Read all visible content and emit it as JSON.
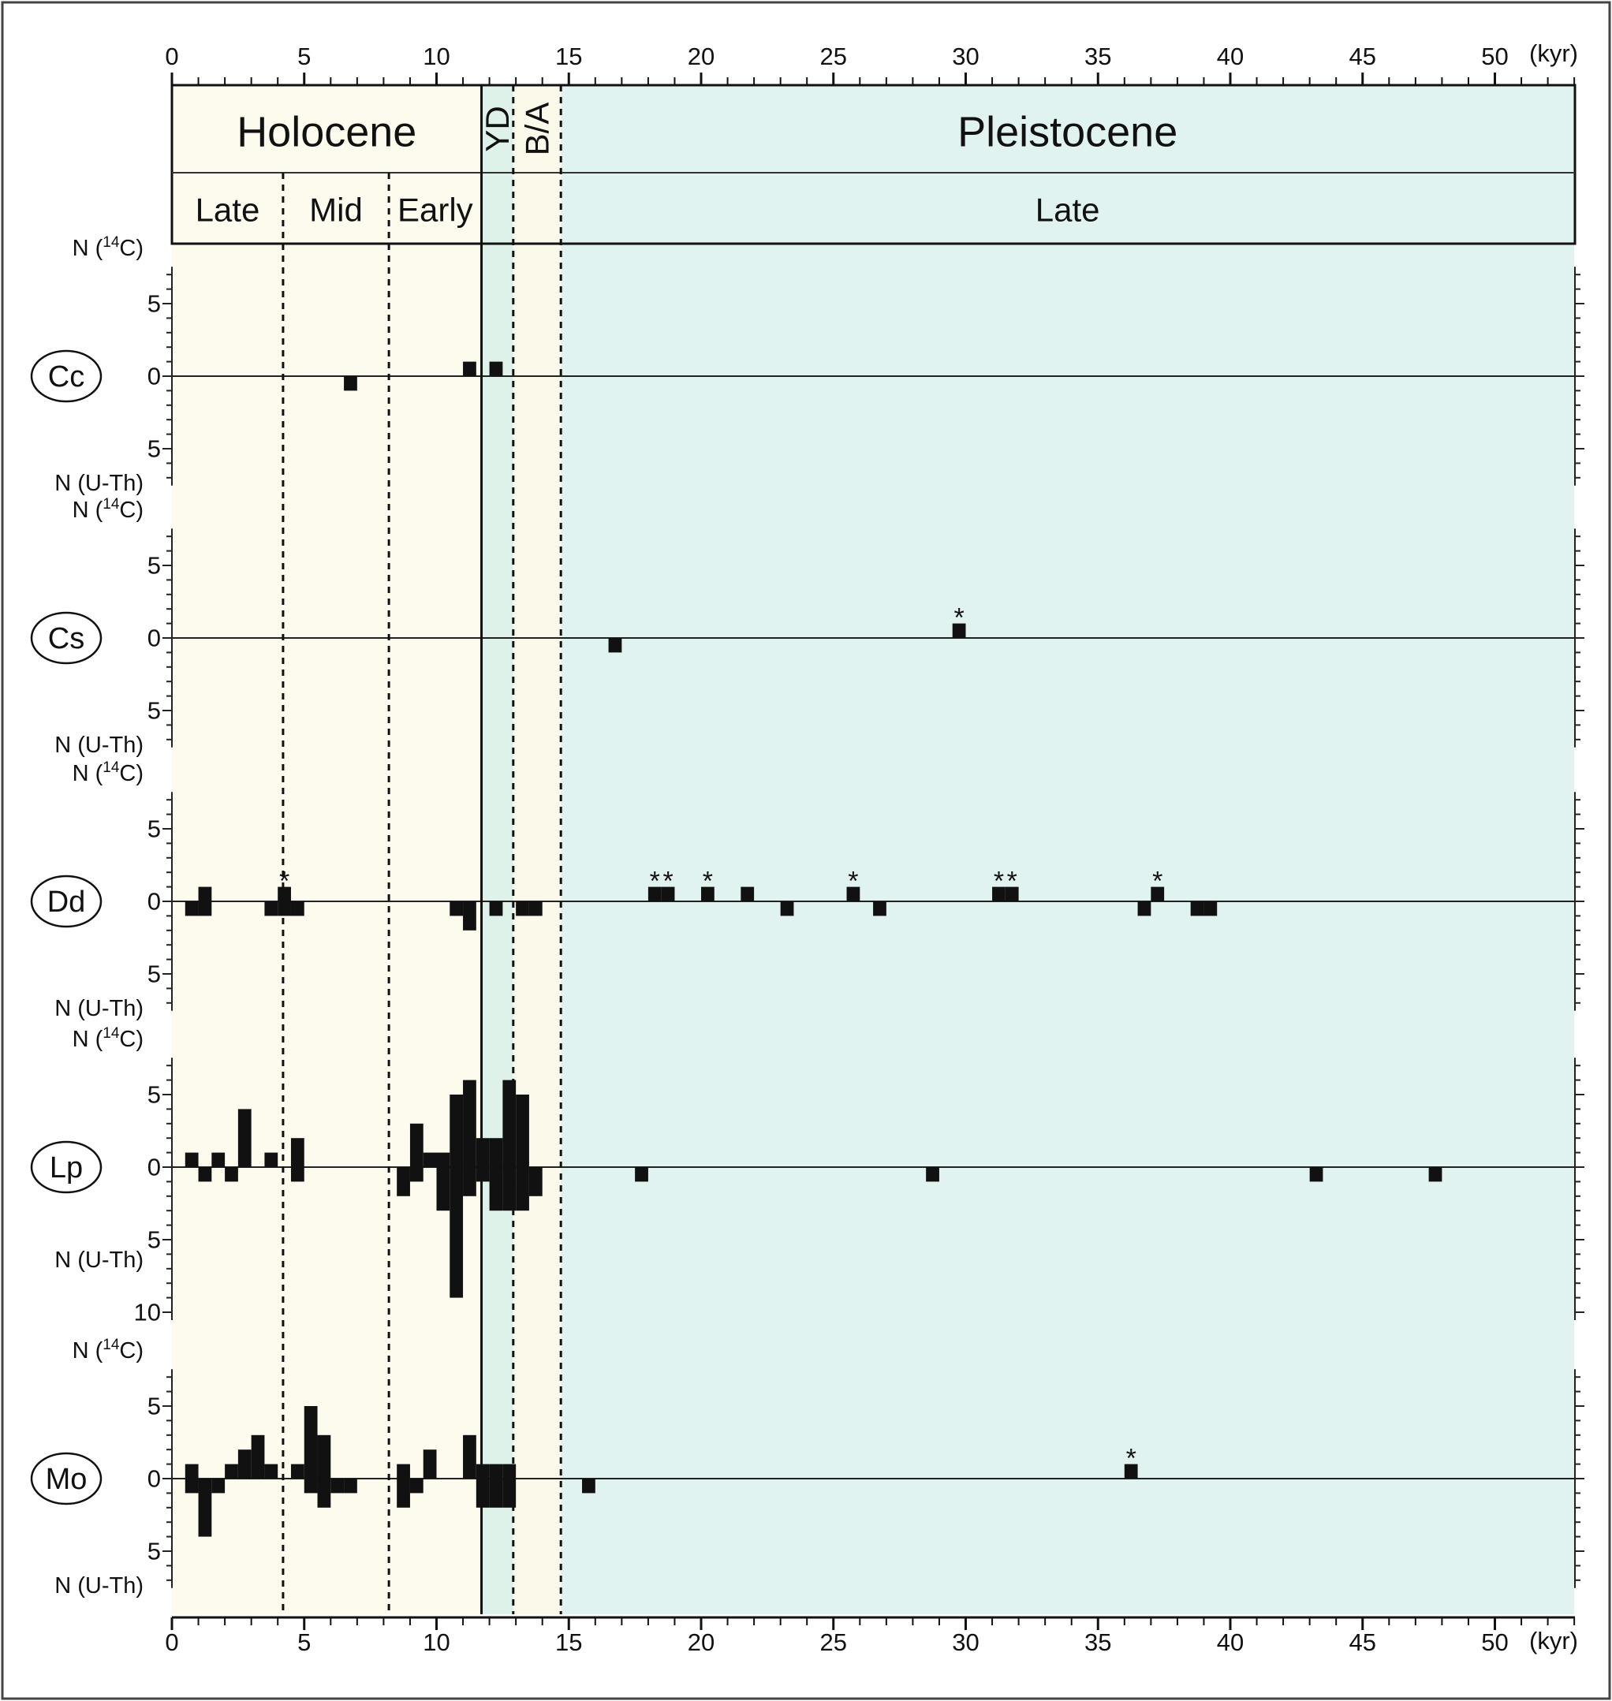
{
  "chart_data": {
    "type": "bar",
    "x_unit": "(kyr)",
    "xlim": [
      0,
      53
    ],
    "x_ticks_major": [
      0,
      5,
      10,
      15,
      20,
      25,
      30,
      35,
      40,
      45,
      50
    ],
    "periods": {
      "top": [
        {
          "label": "Holocene",
          "start": 0,
          "end": 11.7
        },
        {
          "label": "YD",
          "start": 11.7,
          "end": 12.9
        },
        {
          "label": "B/A",
          "start": 12.9,
          "end": 14.7
        },
        {
          "label": "Pleistocene",
          "start": 14.7,
          "end": 53
        }
      ],
      "sub": [
        {
          "label": "Late",
          "start": 0,
          "end": 4.2
        },
        {
          "label": "Mid",
          "start": 4.2,
          "end": 8.2
        },
        {
          "label": "Early",
          "start": 8.2,
          "end": 11.7
        },
        {
          "label": "Late",
          "start": 14.7,
          "end": 53
        }
      ],
      "colors": {
        "holocene": "#fdfbee",
        "yd": "#dff2ea",
        "ba": "#fbf9ea",
        "pleistocene": "#e1f3f1"
      }
    },
    "panel_labels": {
      "top": "N (14C)",
      "bottom": "N (U-Th)"
    },
    "panels": [
      {
        "name": "Cc",
        "ylim_top": 7,
        "ylim_bottom": 7,
        "y_ticks_top": [
          5
        ],
        "y_ticks_bottom": [
          5
        ],
        "c14": [
          {
            "x": 11.25,
            "n": 1
          },
          {
            "x": 12.25,
            "n": 1
          }
        ],
        "uth": [
          {
            "x": 6.75,
            "n": 1
          }
        ],
        "starred": []
      },
      {
        "name": "Cs",
        "ylim_top": 7,
        "ylim_bottom": 7,
        "y_ticks_top": [
          5
        ],
        "y_ticks_bottom": [
          5
        ],
        "c14": [
          {
            "x": 29.75,
            "n": 1
          }
        ],
        "uth": [
          {
            "x": 16.75,
            "n": 1
          }
        ],
        "starred": [
          29.75
        ]
      },
      {
        "name": "Dd",
        "ylim_top": 7,
        "ylim_bottom": 7,
        "y_ticks_top": [
          5
        ],
        "y_ticks_bottom": [
          5
        ],
        "c14": [
          {
            "x": 1.25,
            "n": 1
          },
          {
            "x": 4.25,
            "n": 1
          },
          {
            "x": 18.25,
            "n": 1
          },
          {
            "x": 18.75,
            "n": 1
          },
          {
            "x": 20.25,
            "n": 1
          },
          {
            "x": 21.75,
            "n": 1
          },
          {
            "x": 25.75,
            "n": 1
          },
          {
            "x": 31.25,
            "n": 1
          },
          {
            "x": 31.75,
            "n": 1
          },
          {
            "x": 37.25,
            "n": 1
          }
        ],
        "uth": [
          {
            "x": 0.75,
            "n": 1
          },
          {
            "x": 1.25,
            "n": 1
          },
          {
            "x": 3.75,
            "n": 1
          },
          {
            "x": 4.25,
            "n": 1
          },
          {
            "x": 4.75,
            "n": 1
          },
          {
            "x": 10.75,
            "n": 1
          },
          {
            "x": 11.25,
            "n": 2
          },
          {
            "x": 12.25,
            "n": 1
          },
          {
            "x": 13.25,
            "n": 1
          },
          {
            "x": 13.75,
            "n": 1
          },
          {
            "x": 23.25,
            "n": 1
          },
          {
            "x": 26.75,
            "n": 1
          },
          {
            "x": 36.75,
            "n": 1
          },
          {
            "x": 38.75,
            "n": 1
          },
          {
            "x": 39.25,
            "n": 1
          }
        ],
        "starred": [
          4.25,
          18.25,
          18.75,
          20.25,
          25.75,
          31.25,
          31.75,
          37.25
        ]
      },
      {
        "name": "Lp",
        "ylim_top": 7,
        "ylim_bottom": 10,
        "y_ticks_top": [
          5
        ],
        "y_ticks_bottom": [
          5,
          10
        ],
        "c14": [
          {
            "x": 0.75,
            "n": 1
          },
          {
            "x": 1.75,
            "n": 1
          },
          {
            "x": 2.75,
            "n": 4
          },
          {
            "x": 3.75,
            "n": 1
          },
          {
            "x": 4.75,
            "n": 2
          },
          {
            "x": 9.25,
            "n": 3
          },
          {
            "x": 9.75,
            "n": 1
          },
          {
            "x": 10.25,
            "n": 1
          },
          {
            "x": 10.75,
            "n": 5
          },
          {
            "x": 11.25,
            "n": 6
          },
          {
            "x": 11.75,
            "n": 2
          },
          {
            "x": 12.25,
            "n": 2
          },
          {
            "x": 12.75,
            "n": 6
          },
          {
            "x": 13.25,
            "n": 5
          }
        ],
        "uth": [
          {
            "x": 1.25,
            "n": 1
          },
          {
            "x": 2.25,
            "n": 1
          },
          {
            "x": 4.75,
            "n": 1
          },
          {
            "x": 8.75,
            "n": 2
          },
          {
            "x": 9.25,
            "n": 1
          },
          {
            "x": 10.25,
            "n": 3
          },
          {
            "x": 10.75,
            "n": 9
          },
          {
            "x": 11.25,
            "n": 2
          },
          {
            "x": 11.75,
            "n": 1
          },
          {
            "x": 12.25,
            "n": 3
          },
          {
            "x": 12.75,
            "n": 3
          },
          {
            "x": 13.25,
            "n": 3
          },
          {
            "x": 13.75,
            "n": 2
          },
          {
            "x": 17.75,
            "n": 1
          },
          {
            "x": 28.75,
            "n": 1
          },
          {
            "x": 43.25,
            "n": 1
          },
          {
            "x": 47.75,
            "n": 1
          }
        ],
        "starred": []
      },
      {
        "name": "Mo",
        "ylim_top": 7,
        "ylim_bottom": 7,
        "y_ticks_top": [
          5
        ],
        "y_ticks_bottom": [
          5
        ],
        "c14": [
          {
            "x": 0.75,
            "n": 1
          },
          {
            "x": 2.25,
            "n": 1
          },
          {
            "x": 2.75,
            "n": 2
          },
          {
            "x": 3.25,
            "n": 3
          },
          {
            "x": 3.75,
            "n": 1
          },
          {
            "x": 4.75,
            "n": 1
          },
          {
            "x": 5.25,
            "n": 5
          },
          {
            "x": 5.75,
            "n": 3
          },
          {
            "x": 8.75,
            "n": 1
          },
          {
            "x": 9.75,
            "n": 2
          },
          {
            "x": 11.25,
            "n": 3
          },
          {
            "x": 11.75,
            "n": 1
          },
          {
            "x": 12.25,
            "n": 1
          },
          {
            "x": 12.75,
            "n": 1
          },
          {
            "x": 36.25,
            "n": 1
          }
        ],
        "uth": [
          {
            "x": 0.75,
            "n": 1
          },
          {
            "x": 1.25,
            "n": 4
          },
          {
            "x": 1.75,
            "n": 1
          },
          {
            "x": 5.25,
            "n": 1
          },
          {
            "x": 5.75,
            "n": 2
          },
          {
            "x": 6.25,
            "n": 1
          },
          {
            "x": 6.75,
            "n": 1
          },
          {
            "x": 8.75,
            "n": 2
          },
          {
            "x": 9.25,
            "n": 1
          },
          {
            "x": 11.75,
            "n": 2
          },
          {
            "x": 12.25,
            "n": 2
          },
          {
            "x": 12.75,
            "n": 2
          },
          {
            "x": 15.75,
            "n": 1
          }
        ],
        "starred": [
          36.25
        ]
      }
    ]
  }
}
